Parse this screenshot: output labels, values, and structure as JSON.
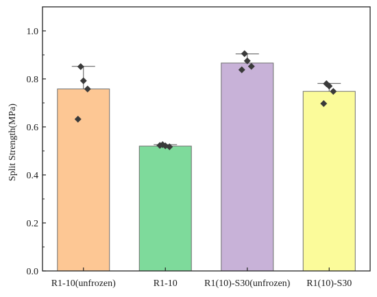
{
  "chart_data": {
    "type": "bar",
    "title": "",
    "xlabel": "",
    "ylabel": "Split Strength(MPa)",
    "ylim": [
      0.0,
      1.1
    ],
    "yticks": [
      "0.0",
      "0.2",
      "0.4",
      "0.6",
      "0.8",
      "1.0"
    ],
    "grid": false,
    "legend": "none",
    "categories": [
      "R1-10(unfrozen)",
      "R1-10",
      "R1(10)-S30(unfrozen)",
      "R1(10)-S30"
    ],
    "values": [
      0.758,
      0.52,
      0.866,
      0.748
    ],
    "error_upper": [
      0.852,
      0.526,
      0.904,
      0.781
    ],
    "points": [
      [
        0.851,
        0.792,
        0.758,
        0.632
      ],
      [
        0.526,
        0.521,
        0.517,
        0.523
      ],
      [
        0.905,
        0.875,
        0.852,
        0.838
      ],
      [
        0.78,
        0.77,
        0.748,
        0.697
      ]
    ],
    "colors": [
      "#FDC794",
      "#7EDA9B",
      "#C8B2D8",
      "#FBFB9A"
    ],
    "point_color": "#3a3a3a"
  }
}
